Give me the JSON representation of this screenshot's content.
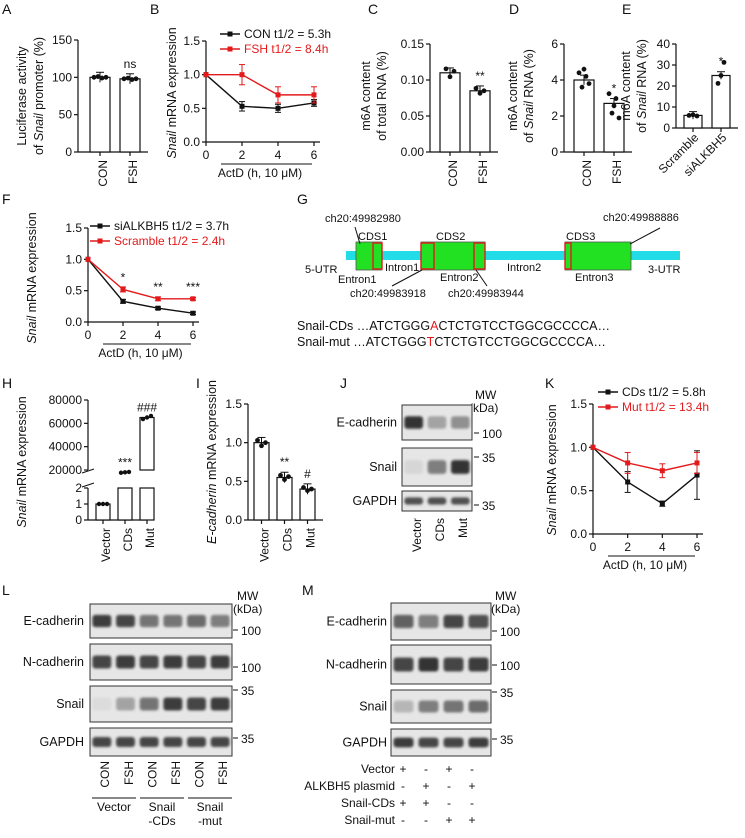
{
  "colors": {
    "black": "#111111",
    "red": "#e31a1c",
    "cyan": "#22dde8",
    "green": "#22e022",
    "blot_dark": "#2a2a2a",
    "blot_bg": "#e6e6e6",
    "bar_fill": "#ffffff"
  },
  "chart_data": [
    {
      "id": "A",
      "type": "bar",
      "panel_label": "A",
      "ylabel_line1": "Luciferase activity",
      "ylabel_line2_prefix": "of ",
      "ylabel_line2_italic": "Snail",
      "ylabel_line2_suffix": " promoter (%)",
      "categories": [
        "CON",
        "FSH"
      ],
      "values": [
        100,
        98
      ],
      "ylim": [
        0,
        150
      ],
      "yticks": [
        "0",
        "50",
        "100",
        "150"
      ],
      "annotations": [
        "",
        "ns"
      ]
    },
    {
      "id": "B",
      "type": "line",
      "panel_label": "B",
      "ylabel_italic": "Snail",
      "ylabel_rest": " mRNA expression",
      "xlabel": "ActD (h, 10 μM)",
      "x": [
        0,
        2,
        4,
        6
      ],
      "xticks": [
        "0",
        "2",
        "4",
        "6"
      ],
      "ylim": [
        0,
        1.5
      ],
      "yticks": [
        "0.0",
        "0.5",
        "1.0",
        "1.5"
      ],
      "series": [
        {
          "name": "CON",
          "halflife": "t1/2 = 5.3h",
          "values": [
            1.0,
            0.53,
            0.5,
            0.58
          ],
          "err": [
            0,
            0.07,
            0.06,
            0.05
          ],
          "color": "#111111"
        },
        {
          "name": "FSH",
          "halflife": "t1/2 = 8.4h",
          "values": [
            1.0,
            1.0,
            0.7,
            0.7
          ],
          "err": [
            0,
            0.15,
            0.12,
            0.12
          ],
          "color": "#e31a1c"
        }
      ]
    },
    {
      "id": "C",
      "type": "bar",
      "panel_label": "C",
      "ylabel_line1": "m6A content",
      "ylabel_line2": "of total RNA (%)",
      "categories": [
        "CON",
        "FSH"
      ],
      "values": [
        0.11,
        0.085
      ],
      "ylim": [
        0,
        0.15
      ],
      "yticks": [
        "0.00",
        "0.05",
        "0.10",
        "0.15"
      ],
      "annotations": [
        "",
        "**"
      ]
    },
    {
      "id": "D",
      "type": "bar",
      "panel_label": "D",
      "ylabel_line1": "m6A content",
      "ylabel_line2_prefix": "of ",
      "ylabel_line2_italic": "Snail",
      "ylabel_line2_suffix": " RNA (%)",
      "categories": [
        "CON",
        "FSH"
      ],
      "values": [
        4.0,
        2.7
      ],
      "ylim": [
        0,
        6
      ],
      "yticks": [
        "0",
        "2",
        "4",
        "6"
      ],
      "annotations": [
        "",
        "*"
      ]
    },
    {
      "id": "E",
      "type": "bar",
      "panel_label": "E",
      "ylabel_line1": "m6A content",
      "ylabel_line2_prefix": "of ",
      "ylabel_line2_italic": "Snail",
      "ylabel_line2_suffix": " RNA (%)",
      "categories": [
        "Scramble",
        "siALKBH5"
      ],
      "values": [
        6,
        25
      ],
      "ylim": [
        0,
        40
      ],
      "yticks": [
        "0",
        "10",
        "20",
        "30",
        "40"
      ],
      "annotations": [
        "",
        "*"
      ]
    },
    {
      "id": "F",
      "type": "line",
      "panel_label": "F",
      "ylabel_italic": "Snail",
      "ylabel_rest": " mRNA expression",
      "xlabel": "ActD (h, 10 μM)",
      "x": [
        0,
        2,
        4,
        6
      ],
      "xticks": [
        "0",
        "2",
        "4",
        "6"
      ],
      "ylim": [
        0,
        1.5
      ],
      "yticks": [
        "0.0",
        "0.5",
        "1.0",
        "1.5"
      ],
      "series": [
        {
          "name": "siALKBH5",
          "halflife": "t1/2 = 3.7h",
          "values": [
            1.0,
            0.33,
            0.22,
            0.14
          ],
          "err": [
            0,
            0.03,
            0.02,
            0.02
          ],
          "color": "#111111"
        },
        {
          "name": "Scramble",
          "halflife": "t1/2 = 2.4h",
          "values": [
            1.0,
            0.52,
            0.37,
            0.37
          ],
          "err": [
            0,
            0.04,
            0.03,
            0.02
          ],
          "color": "#e31a1c"
        }
      ],
      "annotations": [
        {
          "x": 2,
          "text": "*"
        },
        {
          "x": 4,
          "text": "**"
        },
        {
          "x": 6,
          "text": "***"
        }
      ]
    },
    {
      "id": "H",
      "type": "bar",
      "panel_label": "H",
      "ylabel_italic": "Snail",
      "ylabel_rest": " mRNA expression",
      "categories": [
        "Vector",
        "CDs",
        "Mut"
      ],
      "values": [
        1,
        18000,
        65000
      ],
      "yticks_upper": [
        "20000",
        "40000",
        "60000",
        "80000"
      ],
      "yticks_lower": [
        "0",
        "1",
        "2"
      ],
      "axis_break": true,
      "annotations": [
        "",
        "***",
        "###"
      ]
    },
    {
      "id": "I",
      "type": "bar",
      "panel_label": "I",
      "ylabel_italic": "E-cadherin",
      "ylabel_rest": " mRNA expression",
      "categories": [
        "Vector",
        "CDs",
        "Mut"
      ],
      "values": [
        1.0,
        0.55,
        0.4
      ],
      "ylim": [
        0,
        1.5
      ],
      "yticks": [
        "0.0",
        "0.5",
        "1.0",
        "1.5"
      ],
      "annotations": [
        "",
        "**",
        "#"
      ]
    },
    {
      "id": "K",
      "type": "line",
      "panel_label": "K",
      "ylabel_italic": "Snail",
      "ylabel_rest": " mRNA expression",
      "xlabel": "ActD (h, 10 μM)",
      "x": [
        0,
        2,
        4,
        6
      ],
      "xticks": [
        "0",
        "2",
        "4",
        "6"
      ],
      "ylim": [
        0,
        1.5
      ],
      "yticks": [
        "0.0",
        "0.5",
        "1.0",
        "1.5"
      ],
      "series": [
        {
          "name": "CDs",
          "halflife": "t1/2 = 5.8h",
          "values": [
            1.0,
            0.6,
            0.35,
            0.68
          ],
          "err": [
            0,
            0.12,
            0.03,
            0.28
          ],
          "color": "#111111"
        },
        {
          "name": "Mut",
          "halflife": "t1/2 = 13.4h",
          "values": [
            1.0,
            0.82,
            0.73,
            0.82
          ],
          "err": [
            0,
            0.12,
            0.08,
            0.12
          ],
          "color": "#e31a1c"
        }
      ]
    }
  ],
  "panel_G": {
    "label": "G",
    "coords": [
      "ch20:49982980",
      "ch20:49988886",
      "ch20:49983918",
      "ch20:49983944"
    ],
    "cds": [
      "CDS1",
      "CDS2",
      "CDS3"
    ],
    "regions": [
      "5-UTR",
      "Entron1",
      "Intron1",
      "Entron2",
      "Intron2",
      "Entron3",
      "3-UTR"
    ],
    "seq_cds_label": "Snail-CDs",
    "seq_cds_pre": "…ATCTGGG",
    "seq_cds_mut": "A",
    "seq_cds_post": "CTCTGTCCTGGCGCCCCA…",
    "seq_mut_label": "Snail-mut",
    "seq_mut_pre": "…ATCTGGG",
    "seq_mut_mut": "T",
    "seq_mut_post": "CTCTGTCCTGGCGCCCCA…"
  },
  "panel_J": {
    "label": "J",
    "mw_label": "MW",
    "kda_label": "(kDa)",
    "rows": [
      {
        "name": "E-cadherin",
        "mw": "100"
      },
      {
        "name": "Snail",
        "mw": "35"
      },
      {
        "name": "GAPDH",
        "mw": "35"
      }
    ],
    "lanes": [
      "Vector",
      "CDs",
      "Mut"
    ]
  },
  "panel_L": {
    "label": "L",
    "mw_label": "MW",
    "kda_label": "(kDa)",
    "rows": [
      {
        "name": "E-cadherin",
        "mw": "100"
      },
      {
        "name": "N-cadherin",
        "mw": "100"
      },
      {
        "name": "Snail",
        "mw": "35"
      },
      {
        "name": "GAPDH",
        "mw": "35"
      }
    ],
    "lanes": [
      "CON",
      "FSH",
      "CON",
      "FSH",
      "CON",
      "FSH"
    ],
    "groups": [
      {
        "line1": "Vector",
        "line2": ""
      },
      {
        "line1": "Snail",
        "line2": "-CDs"
      },
      {
        "line1": "Snail",
        "line2": "-mut"
      }
    ]
  },
  "panel_M": {
    "label": "M",
    "mw_label": "MW",
    "kda_label": "(kDa)",
    "rows": [
      {
        "name": "E-cadherin",
        "mw": "100"
      },
      {
        "name": "N-cadherin",
        "mw": "100"
      },
      {
        "name": "Snail",
        "mw": "35"
      },
      {
        "name": "GAPDH",
        "mw": "35"
      }
    ],
    "conditions": [
      {
        "name": "Vector",
        "signs": [
          "+",
          "-",
          "+",
          "-"
        ]
      },
      {
        "name": "ALKBH5 plasmid",
        "signs": [
          "-",
          "+",
          "-",
          "+"
        ]
      },
      {
        "name": "Snail-CDs",
        "signs": [
          "+",
          "+",
          "-",
          "-"
        ]
      },
      {
        "name": "Snail-mut",
        "signs": [
          "-",
          "-",
          "+",
          "+"
        ]
      }
    ]
  }
}
